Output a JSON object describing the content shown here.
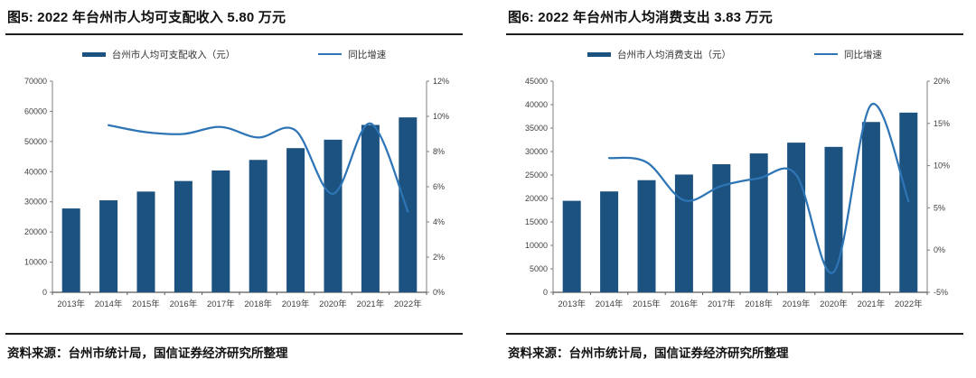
{
  "colors": {
    "bar": "#1B527F",
    "line": "#2E75B6",
    "axis_line": "#7f7f7f",
    "baseline": "#595959",
    "axis_text": "#404040",
    "title_text": "#111111"
  },
  "panels": [
    {
      "title": "图5: 2022 年台州市人均可支配收入 5.80 万元",
      "source": "资料来源：台州市统计局，国信证券经济研究所整理"
    },
    {
      "title": "图6: 2022 年台州市人均消费支出 3.83 万元",
      "source": "资料来源：台州市统计局，国信证券经济研究所整理"
    }
  ],
  "chart_data": [
    {
      "type": "bar",
      "subtype": "bar+line-combo",
      "title": "图5: 2022 年台州市人均可支配收入 5.80 万元",
      "categories": [
        "2013年",
        "2014年",
        "2015年",
        "2016年",
        "2017年",
        "2018年",
        "2019年",
        "2020年",
        "2021年",
        "2022年"
      ],
      "series": [
        {
          "name": "台州市人均可支配收入（元）",
          "type": "bar",
          "axis": "left",
          "color": "#1B527F",
          "values": [
            27800,
            30500,
            33400,
            36900,
            40400,
            43900,
            47800,
            50600,
            55500,
            58000
          ]
        },
        {
          "name": "同比增速",
          "type": "line",
          "axis": "right",
          "color": "#2E75B6",
          "unit": "%",
          "values": [
            null,
            9.5,
            9.1,
            9.0,
            9.4,
            8.8,
            9.2,
            5.6,
            9.6,
            4.6
          ]
        }
      ],
      "left_axis": {
        "min": 0,
        "max": 70000,
        "step": 10000,
        "suffix": ""
      },
      "right_axis": {
        "min": 0,
        "max": 12,
        "step": 2,
        "suffix": "%"
      },
      "legend_position": "top",
      "grid": false
    },
    {
      "type": "bar",
      "subtype": "bar+line-combo",
      "title": "图6: 2022 年台州市人均消费支出 3.83 万元",
      "categories": [
        "2013年",
        "2014年",
        "2015年",
        "2016年",
        "2017年",
        "2018年",
        "2019年",
        "2020年",
        "2021年",
        "2022年"
      ],
      "series": [
        {
          "name": "台州市人均消费支出（元）",
          "type": "bar",
          "axis": "left",
          "color": "#1B527F",
          "values": [
            19500,
            21500,
            23900,
            25100,
            27300,
            29600,
            31900,
            31000,
            36300,
            38300
          ]
        },
        {
          "name": "同比增速",
          "type": "line",
          "axis": "right",
          "color": "#2E75B6",
          "unit": "%",
          "values": [
            null,
            10.9,
            10.4,
            5.9,
            7.6,
            8.5,
            8.9,
            -2.6,
            17.2,
            5.8
          ]
        }
      ],
      "left_axis": {
        "min": 0,
        "max": 45000,
        "step": 5000,
        "suffix": ""
      },
      "right_axis": {
        "min": -5,
        "max": 20,
        "step": 5,
        "suffix": "%"
      },
      "legend_position": "top",
      "grid": false
    }
  ]
}
